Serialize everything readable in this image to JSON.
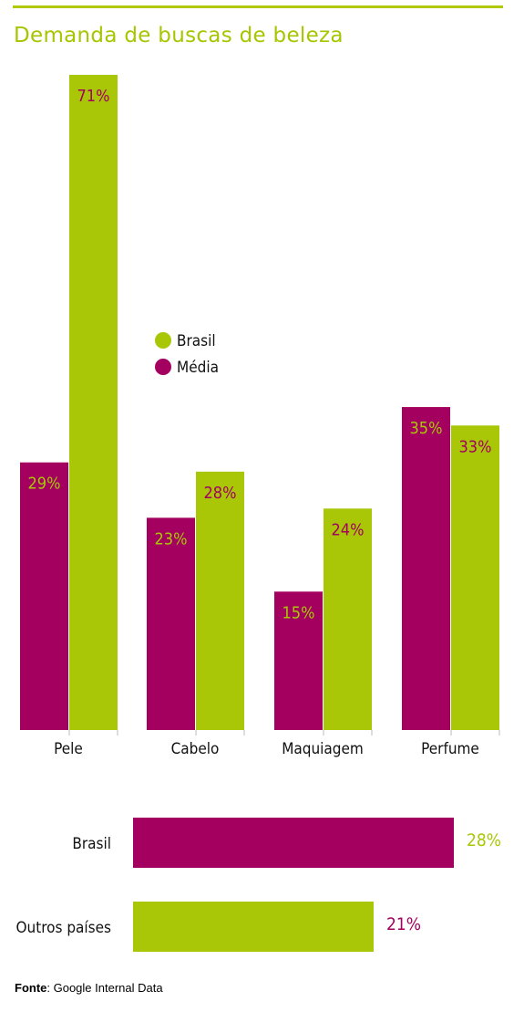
{
  "title": "Demanda de buscas de beleza",
  "colors": {
    "brasil": "#a9c707",
    "media": "#a3005f",
    "accent_line": "#b0c90a"
  },
  "legend": [
    {
      "label": "Brasil",
      "color": "#a9c707"
    },
    {
      "label": "Média",
      "color": "#a3005f"
    }
  ],
  "chart_data": [
    {
      "type": "bar",
      "title": "Demanda de buscas de beleza",
      "categories": [
        "Pele",
        "Cabelo",
        "Maquiagem",
        "Perfume"
      ],
      "series": [
        {
          "name": "Média",
          "values": [
            29,
            23,
            15,
            35
          ],
          "labels": [
            "29%",
            "23%",
            "15%",
            "35%"
          ]
        },
        {
          "name": "Brasil",
          "values": [
            71,
            28,
            24,
            33
          ],
          "labels": [
            "71%",
            "28%",
            "24%",
            "33%"
          ]
        }
      ],
      "ylim": [
        0,
        71
      ],
      "legend_position": "center-left",
      "grid": false
    },
    {
      "type": "bar",
      "orientation": "horizontal",
      "categories": [
        "Brasil",
        "Outros países"
      ],
      "values": [
        28,
        21
      ],
      "labels": [
        "28%",
        "21%"
      ],
      "bar_colors": [
        "#a3005f",
        "#a9c707"
      ],
      "label_colors": [
        "#a9c707",
        "#a3005f"
      ],
      "xlim": [
        0,
        28
      ]
    }
  ],
  "footer": {
    "bold": "Fonte",
    "text": ": Google Internal Data"
  }
}
